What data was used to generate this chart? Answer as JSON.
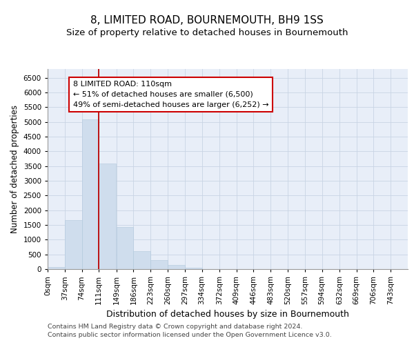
{
  "title": "8, LIMITED ROAD, BOURNEMOUTH, BH9 1SS",
  "subtitle": "Size of property relative to detached houses in Bournemouth",
  "xlabel": "Distribution of detached houses by size in Bournemouth",
  "ylabel": "Number of detached properties",
  "bar_color": "#cfdded",
  "bar_edge_color": "#b0c8dc",
  "grid_color": "#c8d4e4",
  "plot_bg_color": "#e8eef8",
  "annotation_text_line1": "8 LIMITED ROAD: 110sqm",
  "annotation_text_line2": "← 51% of detached houses are smaller (6,500)",
  "annotation_text_line3": "49% of semi-detached houses are larger (6,252) →",
  "property_line_color": "#bb0000",
  "categories": [
    "0sqm",
    "37sqm",
    "74sqm",
    "111sqm",
    "149sqm",
    "186sqm",
    "223sqm",
    "260sqm",
    "297sqm",
    "334sqm",
    "372sqm",
    "409sqm",
    "446sqm",
    "483sqm",
    "520sqm",
    "557sqm",
    "594sqm",
    "632sqm",
    "669sqm",
    "706sqm",
    "743sqm"
  ],
  "bin_starts": [
    0,
    37,
    74,
    111,
    149,
    186,
    223,
    260,
    297,
    334,
    372,
    409,
    446,
    483,
    520,
    557,
    594,
    632,
    669,
    706,
    743
  ],
  "bin_width": 37,
  "values": [
    60,
    1670,
    5080,
    3580,
    1420,
    620,
    300,
    145,
    50,
    0,
    0,
    0,
    0,
    0,
    0,
    0,
    0,
    0,
    0,
    0,
    0
  ],
  "ylim": [
    0,
    6800
  ],
  "yticks": [
    0,
    500,
    1000,
    1500,
    2000,
    2500,
    3000,
    3500,
    4000,
    4500,
    5000,
    5500,
    6000,
    6500
  ],
  "footer_line1": "Contains HM Land Registry data © Crown copyright and database right 2024.",
  "footer_line2": "Contains public sector information licensed under the Open Government Licence v3.0.",
  "title_fontsize": 11,
  "subtitle_fontsize": 9.5,
  "ylabel_fontsize": 8.5,
  "xlabel_fontsize": 9,
  "tick_fontsize": 7.5,
  "annot_fontsize": 8,
  "footer_fontsize": 6.8
}
